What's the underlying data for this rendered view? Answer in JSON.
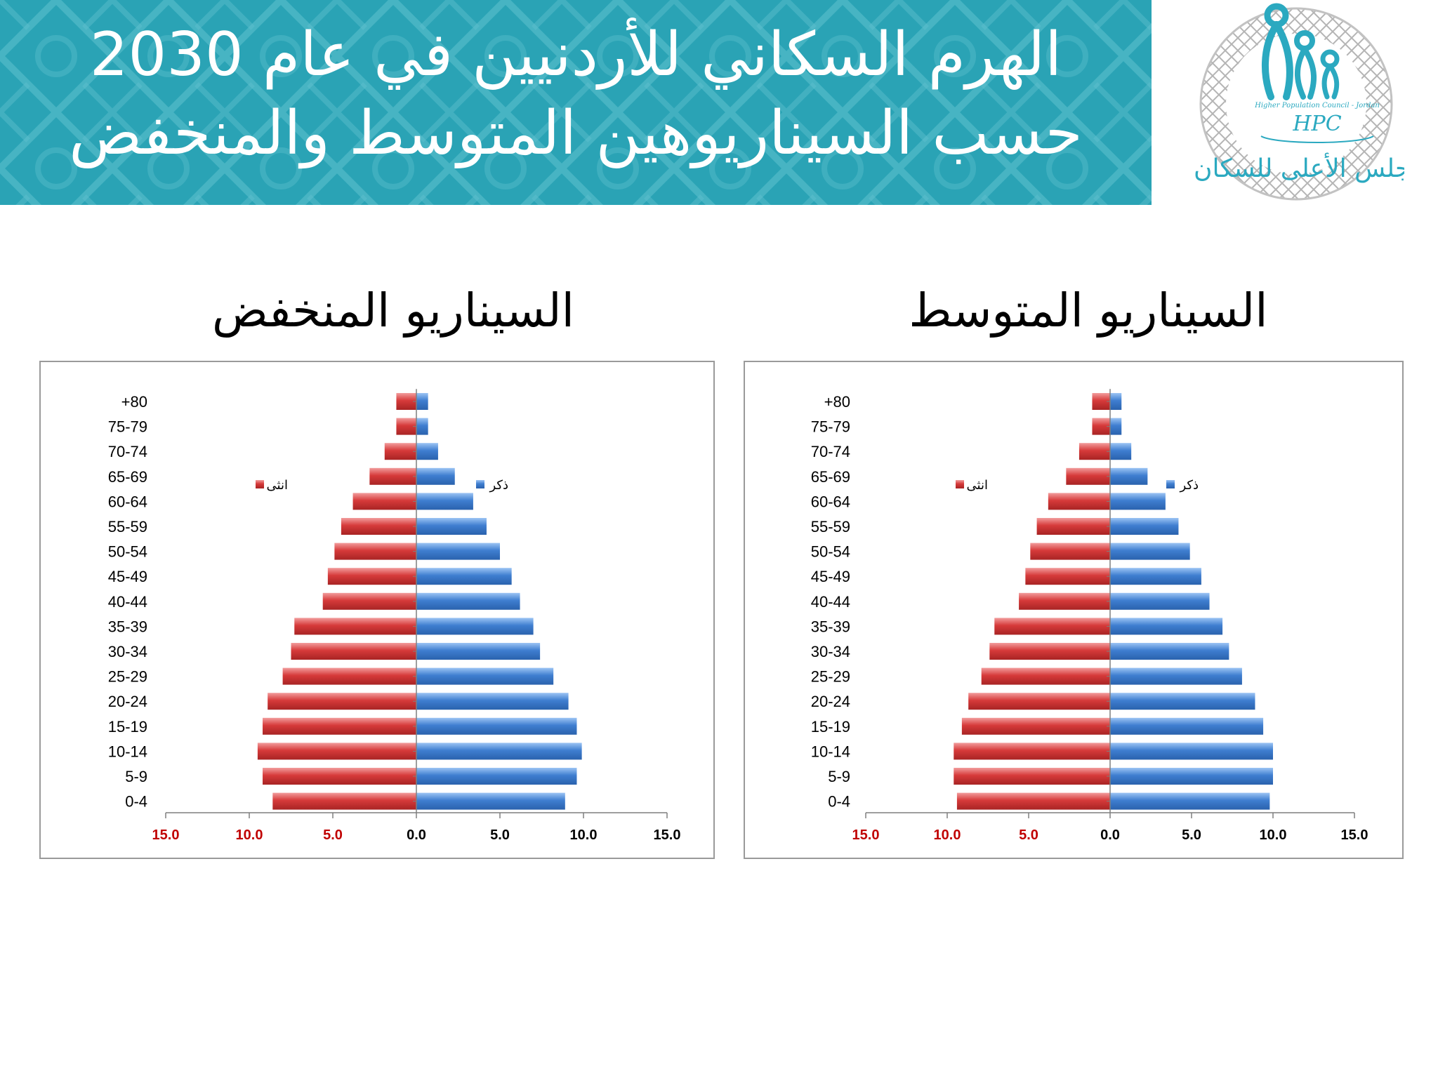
{
  "header": {
    "title": "الهرم السكاني للأردنيين في عام 2030 حسب السيناريوهين المتوسط والمنخفض"
  },
  "logo": {
    "icon": "hpc-logo-icon",
    "lines": [
      "Higher Population Council - Jordan",
      "HPC",
      "المجلس الأعلى للسكان"
    ]
  },
  "colors": {
    "banner": "#2aa3b5",
    "female": "#d63a3a",
    "male": "#3f7ed0",
    "axis_red": "#c00000"
  },
  "panels": [
    {
      "id": "low",
      "title": "السيناريو المنخفض",
      "chart_data": {
        "type": "bar",
        "orientation": "horizontal",
        "categories": [
          "+80",
          "75-79",
          "70-74",
          "65-69",
          "60-64",
          "55-59",
          "50-54",
          "45-49",
          "40-44",
          "35-39",
          "30-34",
          "25-29",
          "20-24",
          "15-19",
          "10-14",
          "5-9",
          "0-4"
        ],
        "series": [
          {
            "name": "ذكر",
            "values": [
              0.7,
              0.7,
              1.3,
              2.3,
              3.4,
              4.2,
              5.0,
              5.7,
              6.2,
              7.0,
              7.4,
              8.2,
              9.1,
              9.6,
              9.9,
              9.6,
              8.9
            ]
          },
          {
            "name": "انثى",
            "values": [
              1.2,
              1.2,
              1.9,
              2.8,
              3.8,
              4.5,
              4.9,
              5.3,
              5.6,
              7.3,
              7.5,
              8.0,
              8.9,
              9.2,
              9.5,
              9.2,
              8.6
            ]
          }
        ],
        "x_ticks": [
          "15.0",
          "10.0",
          "5.0",
          "0.0",
          "5.0",
          "10.0",
          "15.0"
        ],
        "xlim": [
          -15,
          15
        ],
        "legend_placement": "upper-center",
        "grid": false
      }
    },
    {
      "id": "mid",
      "title": "السيناريو المتوسط",
      "chart_data": {
        "type": "bar",
        "orientation": "horizontal",
        "categories": [
          "+80",
          "75-79",
          "70-74",
          "65-69",
          "60-64",
          "55-59",
          "50-54",
          "45-49",
          "40-44",
          "35-39",
          "30-34",
          "25-29",
          "20-24",
          "15-19",
          "10-14",
          "5-9",
          "0-4"
        ],
        "series": [
          {
            "name": "ذكر",
            "values": [
              0.7,
              0.7,
              1.3,
              2.3,
              3.4,
              4.2,
              4.9,
              5.6,
              6.1,
              6.9,
              7.3,
              8.1,
              8.9,
              9.4,
              10.0,
              10.0,
              9.8
            ]
          },
          {
            "name": "انثى",
            "values": [
              1.1,
              1.1,
              1.9,
              2.7,
              3.8,
              4.5,
              4.9,
              5.2,
              5.6,
              7.1,
              7.4,
              7.9,
              8.7,
              9.1,
              9.6,
              9.6,
              9.4
            ]
          }
        ],
        "x_ticks": [
          "15.0",
          "10.0",
          "5.0",
          "0.0",
          "5.0",
          "10.0",
          "15.0"
        ],
        "xlim": [
          -15,
          15
        ],
        "legend_placement": "upper-center",
        "grid": false
      }
    }
  ]
}
